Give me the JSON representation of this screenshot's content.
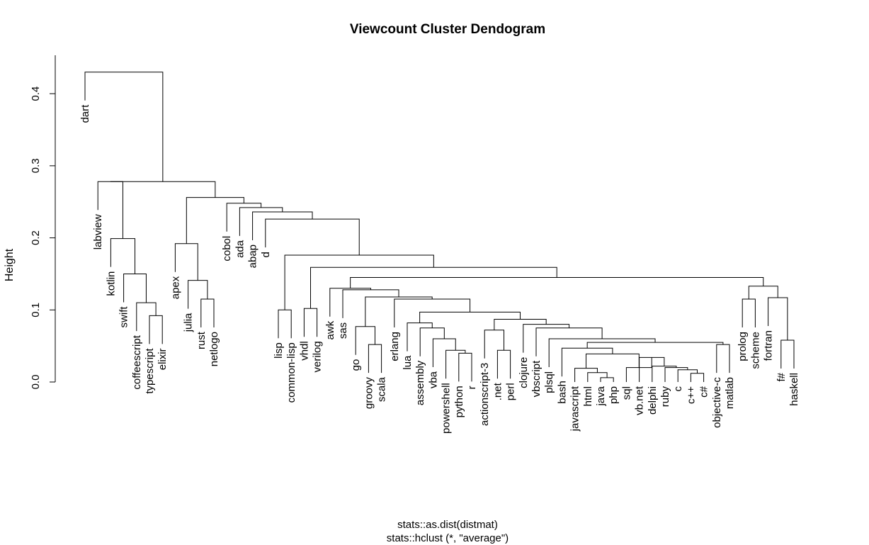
{
  "chart_data": {
    "type": "dendrogram",
    "title": "Viewcount Cluster Dendogram",
    "ylabel": "Height",
    "xlabel_line1": "stats::as.dist(distmat)",
    "xlabel_line2": "stats::hclust (*, \"average\")",
    "ylim": [
      0,
      0.45
    ],
    "yticks": [
      0.0,
      0.1,
      0.2,
      0.3,
      0.4
    ],
    "ytick_labels": [
      "0.0",
      "0.1",
      "0.2",
      "0.3",
      "0.4"
    ],
    "leaf_order": [
      "dart",
      "labview",
      "kotlin",
      "swift",
      "coffeescript",
      "typescript",
      "elixir",
      "apex",
      "julia",
      "rust",
      "netlogo",
      "cobol",
      "ada",
      "abap",
      "d",
      "lisp",
      "common-lisp",
      "vhdl",
      "verilog",
      "awk",
      "sas",
      "go",
      "groovy",
      "scala",
      "erlang",
      "lua",
      "assembly",
      "vba",
      "powershell",
      "python",
      "r",
      "actionscript-3",
      ".net",
      "perl",
      "clojure",
      "vbscript",
      "plsql",
      "bash",
      "javascript",
      "html",
      "java",
      "php",
      "sql",
      "vb.net",
      "delphi",
      "ruby",
      "c",
      "c++",
      "c#",
      "objective-c",
      "matlab",
      "prolog",
      "scheme",
      "fortran",
      "f#",
      "haskell"
    ],
    "merges": [
      {
        "id": "m1",
        "left": "typescript",
        "right": "elixir",
        "height": 0.092
      },
      {
        "id": "m2",
        "left": "coffeescript",
        "right": "m1",
        "height": 0.11
      },
      {
        "id": "m3",
        "left": "swift",
        "right": "m2",
        "height": 0.15
      },
      {
        "id": "m4",
        "left": "kotlin",
        "right": "m3",
        "height": 0.199
      },
      {
        "id": "m5",
        "left": "labview",
        "right": "m4",
        "height": 0.278
      },
      {
        "id": "m6",
        "left": "rust",
        "right": "netlogo",
        "height": 0.115
      },
      {
        "id": "m7",
        "left": "julia",
        "right": "m6",
        "height": 0.141
      },
      {
        "id": "m8",
        "left": "apex",
        "right": "m7",
        "height": 0.192
      },
      {
        "id": "m9",
        "left": "lisp",
        "right": "common-lisp",
        "height": 0.1
      },
      {
        "id": "m10",
        "left": "vhdl",
        "right": "verilog",
        "height": 0.102
      },
      {
        "id": "m11",
        "left": "groovy",
        "right": "scala",
        "height": 0.052
      },
      {
        "id": "m12",
        "left": "go",
        "right": "m11",
        "height": 0.077
      },
      {
        "id": "m13",
        "left": "python",
        "right": "r",
        "height": 0.04
      },
      {
        "id": "m14",
        "left": "powershell",
        "right": "m13",
        "height": 0.044
      },
      {
        "id": "m15",
        "left": "vba",
        "right": "m14",
        "height": 0.06
      },
      {
        "id": "m16",
        "left": "assembly",
        "right": "m15",
        "height": 0.075
      },
      {
        "id": "m17",
        "left": "lua",
        "right": "m16",
        "height": 0.082
      },
      {
        "id": "m18",
        "left": ".net",
        "right": "perl",
        "height": 0.044
      },
      {
        "id": "m19",
        "left": "actionscript-3",
        "right": "m18",
        "height": 0.072
      },
      {
        "id": "m20",
        "left": "java",
        "right": "php",
        "height": 0.006
      },
      {
        "id": "m21",
        "left": "html",
        "right": "m20",
        "height": 0.013
      },
      {
        "id": "m22",
        "left": "javascript",
        "right": "m21",
        "height": 0.019
      },
      {
        "id": "m23",
        "left": "c++",
        "right": "c#",
        "height": 0.012
      },
      {
        "id": "m24",
        "left": "c",
        "right": "m23",
        "height": 0.017
      },
      {
        "id": "m25",
        "left": "ruby",
        "right": "m24",
        "height": 0.02
      },
      {
        "id": "m26",
        "left": "delphi",
        "right": "m25",
        "height": 0.022
      },
      {
        "id": "m27",
        "left": "vb.net",
        "right": "m26",
        "height": 0.034
      },
      {
        "id": "m28",
        "left": "sql",
        "right": "m27",
        "height": 0.02
      },
      {
        "id": "m29",
        "left": "m22",
        "right": "m28",
        "height": 0.039
      },
      {
        "id": "m30",
        "left": "bash",
        "right": "m29",
        "height": 0.047
      },
      {
        "id": "m31",
        "left": "objective-c",
        "right": "matlab",
        "height": 0.052
      },
      {
        "id": "m32",
        "left": "m30",
        "right": "m31",
        "height": 0.055
      },
      {
        "id": "m33",
        "left": "plsql",
        "right": "m32",
        "height": 0.06
      },
      {
        "id": "m34",
        "left": "vbscript",
        "right": "m33",
        "height": 0.075
      },
      {
        "id": "m35",
        "left": "clojure",
        "right": "m34",
        "height": 0.08
      },
      {
        "id": "m36",
        "left": "m19",
        "right": "m35",
        "height": 0.087
      },
      {
        "id": "m37",
        "left": "m17",
        "right": "m36",
        "height": 0.097
      },
      {
        "id": "m38",
        "left": "erlang",
        "right": "m37",
        "height": 0.115
      },
      {
        "id": "m39",
        "left": "m12",
        "right": "m38",
        "height": 0.118
      },
      {
        "id": "m40",
        "left": "sas",
        "right": "m39",
        "height": 0.128
      },
      {
        "id": "m41",
        "left": "awk",
        "right": "m40",
        "height": 0.13
      },
      {
        "id": "m42",
        "left": "prolog",
        "right": "scheme",
        "height": 0.115
      },
      {
        "id": "m43",
        "left": "f#",
        "right": "haskell",
        "height": 0.058
      },
      {
        "id": "m44",
        "left": "fortran",
        "right": "m43",
        "height": 0.117
      },
      {
        "id": "m45",
        "left": "m42",
        "right": "m44",
        "height": 0.133
      },
      {
        "id": "m46",
        "left": "m41",
        "right": "m45",
        "height": 0.145
      },
      {
        "id": "m47",
        "left": "m10",
        "right": "m46",
        "height": 0.159
      },
      {
        "id": "m48",
        "left": "m9",
        "right": "m47",
        "height": 0.176
      },
      {
        "id": "m49",
        "left": "d",
        "right": "m48",
        "height": 0.226
      },
      {
        "id": "m50",
        "left": "abap",
        "right": "m49",
        "height": 0.236
      },
      {
        "id": "m51",
        "left": "ada",
        "right": "m50",
        "height": 0.242
      },
      {
        "id": "m52",
        "left": "cobol",
        "right": "m51",
        "height": 0.248
      },
      {
        "id": "m53",
        "left": "m8",
        "right": "m52",
        "height": 0.256
      },
      {
        "id": "m54",
        "left": "m5",
        "right": "m53",
        "height": 0.261
      },
      {
        "id": "m55",
        "left": "m54",
        "right": "m53x",
        "height": 0.0
      },
      {
        "id": "root_lower",
        "left": "m5",
        "right": "m53",
        "height": 0.278
      },
      {
        "id": "root",
        "left": "dart",
        "right": "root_lower",
        "height": 0.43
      }
    ]
  }
}
